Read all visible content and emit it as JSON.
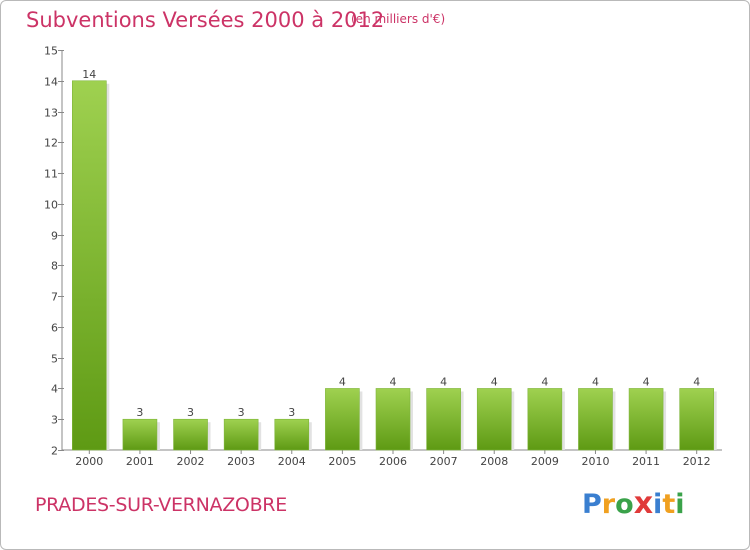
{
  "title": "Subventions Versées 2000 à 2012",
  "subtitle": "(en milliers d'€)",
  "commune": "PRADES-SUR-VERNAZOBRE",
  "logo": {
    "letters": [
      "P",
      "r",
      "o",
      "x",
      "i",
      "t",
      "i"
    ],
    "colors": [
      "#3a7fd0",
      "#f0a020",
      "#3aa24a",
      "#e03a3a",
      "#3a7fd0",
      "#f0a020",
      "#3aa24a"
    ]
  },
  "colors": {
    "bar_top": "#9fd150",
    "bar_bottom": "#5e9a14",
    "text": "#cc3366",
    "axis": "#888888"
  },
  "chart_data": {
    "type": "bar",
    "categories": [
      "2000",
      "2001",
      "2002",
      "2003",
      "2004",
      "2005",
      "2006",
      "2007",
      "2008",
      "2009",
      "2010",
      "2011",
      "2012"
    ],
    "values": [
      14,
      3,
      3,
      3,
      3,
      4,
      4,
      4,
      4,
      4,
      4,
      4,
      4
    ],
    "data_labels": [
      "14",
      "3",
      "3",
      "3",
      "3",
      "4",
      "4",
      "4",
      "4",
      "4",
      "4",
      "4",
      "4"
    ],
    "yticks": [
      2,
      3,
      4,
      5,
      6,
      7,
      8,
      9,
      10,
      11,
      12,
      13,
      14,
      15
    ],
    "ylim": [
      2,
      15
    ],
    "grid": false,
    "legend": "none"
  }
}
